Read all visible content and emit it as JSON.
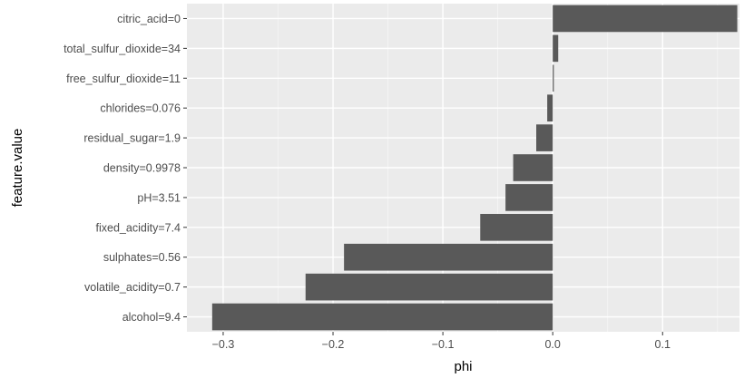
{
  "chart_data": {
    "type": "bar",
    "orientation": "horizontal",
    "xlabel": "phi",
    "ylabel": "feature.value",
    "xlim": [
      -0.333,
      0.17
    ],
    "x_ticks": [
      -0.3,
      -0.2,
      -0.1,
      0.0,
      0.1
    ],
    "x_tick_labels": [
      "−0.3",
      "−0.2",
      "−0.1",
      "0.0",
      "0.1"
    ],
    "grid": true,
    "categories": [
      "citric_acid=0",
      "total_sulfur_dioxide=34",
      "free_sulfur_dioxide=11",
      "chlorides=0.076",
      "residual_sugar=1.9",
      "density=0.9978",
      "pH=3.51",
      "fixed_acidity=7.4",
      "sulphates=0.56",
      "volatile_acidity=0.7",
      "alcohol=9.4"
    ],
    "values": [
      0.168,
      0.005,
      0.001,
      -0.005,
      -0.015,
      -0.036,
      -0.043,
      -0.066,
      -0.19,
      -0.225,
      -0.31
    ],
    "colors": {
      "panel": "#ebebeb",
      "grid_major": "#ffffff",
      "bar": "#595959",
      "tick_mark": "#333333",
      "tick_text": "#4d4d4d"
    }
  }
}
